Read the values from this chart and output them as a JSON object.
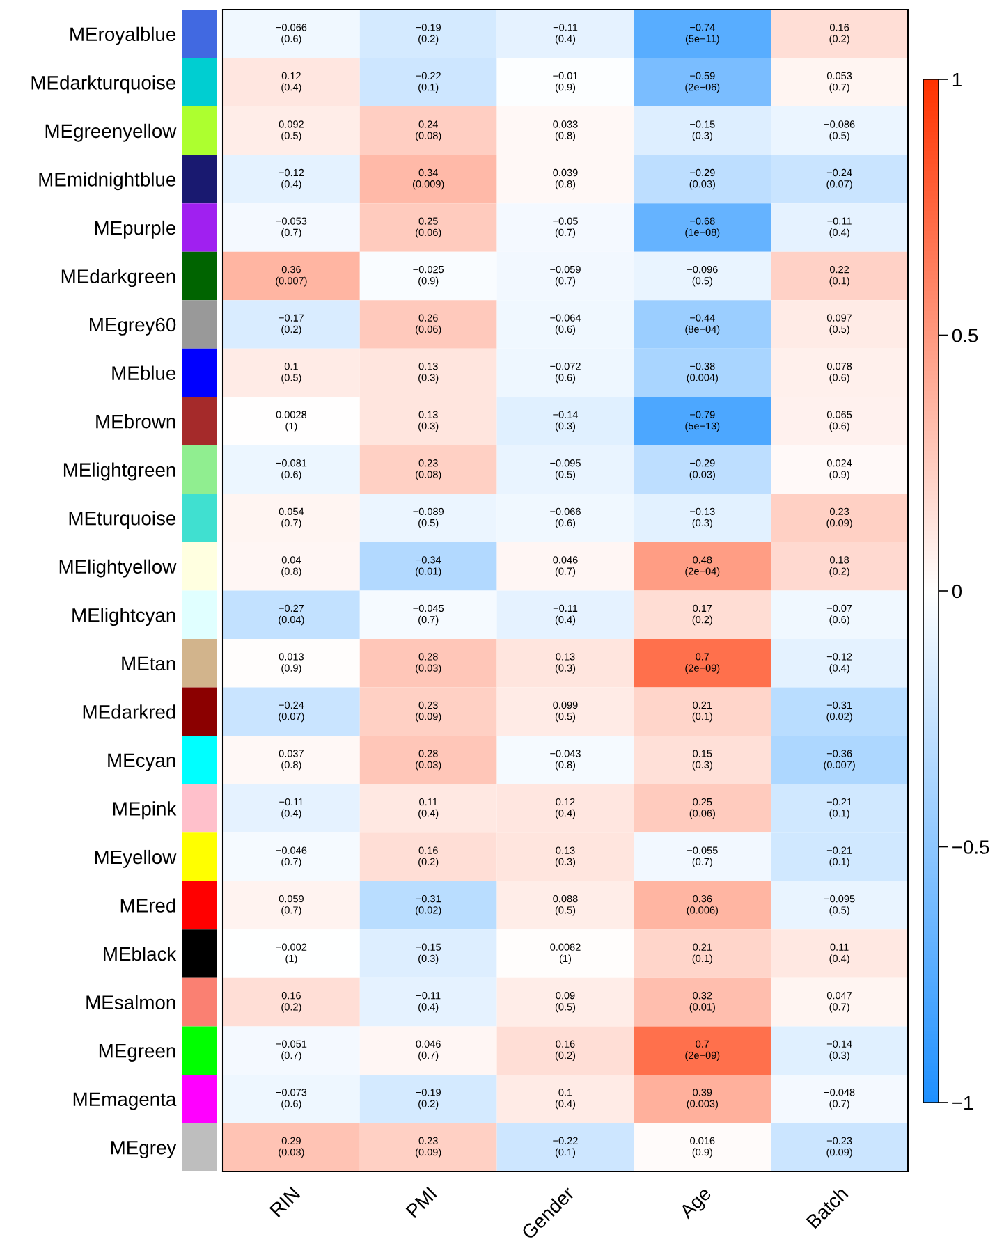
{
  "chart_data": {
    "type": "heatmap",
    "categories": [
      "RIN",
      "PMI",
      "Gender",
      "Age",
      "Batch"
    ],
    "y_categories": [
      "MEroyalblue",
      "MEdarkturquoise",
      "MEgreenyellow",
      "MEmidnightblue",
      "MEpurple",
      "MEdarkgreen",
      "MEgrey60",
      "MEblue",
      "MEbrown",
      "MElightgreen",
      "MEturquoise",
      "MElightyellow",
      "MElightcyan",
      "MEtan",
      "MEdarkred",
      "MEcyan",
      "MEpink",
      "MEyellow",
      "MEred",
      "MEblack",
      "MEsalmon",
      "MEgreen",
      "MEmagenta",
      "MEgrey"
    ],
    "colors": [
      "#4169e1",
      "#00ced1",
      "#adff2f",
      "#191970",
      "#a020f0",
      "#006400",
      "#999999",
      "#0000ff",
      "#a52a2a",
      "#90ee90",
      "#40e0d0",
      "#ffffe0",
      "#e0ffff",
      "#d2b48c",
      "#8b0000",
      "#00ffff",
      "#ffc0cb",
      "#ffff00",
      "#ff0000",
      "#000000",
      "#fa8072",
      "#00ff00",
      "#ff00ff",
      "#bebebe"
    ],
    "cells": [
      [
        -0.066,
        -0.19,
        -0.11,
        -0.74,
        0.16
      ],
      [
        0.12,
        -0.22,
        -0.01,
        -0.59,
        0.053
      ],
      [
        0.092,
        0.24,
        0.033,
        -0.15,
        -0.086
      ],
      [
        -0.12,
        0.34,
        0.039,
        -0.29,
        -0.24
      ],
      [
        -0.053,
        0.25,
        -0.05,
        -0.68,
        -0.11
      ],
      [
        0.36,
        -0.025,
        -0.059,
        -0.096,
        0.22
      ],
      [
        -0.17,
        0.26,
        -0.064,
        -0.44,
        0.097
      ],
      [
        0.1,
        0.13,
        -0.072,
        -0.38,
        0.078
      ],
      [
        0.0028,
        0.13,
        -0.14,
        -0.79,
        0.065
      ],
      [
        -0.081,
        0.23,
        -0.095,
        -0.29,
        0.024
      ],
      [
        0.054,
        -0.089,
        -0.066,
        -0.13,
        0.23
      ],
      [
        0.04,
        -0.34,
        0.046,
        0.48,
        0.18
      ],
      [
        -0.27,
        -0.045,
        -0.11,
        0.17,
        -0.07
      ],
      [
        0.013,
        0.28,
        0.13,
        0.7,
        -0.12
      ],
      [
        -0.24,
        0.23,
        0.099,
        0.21,
        -0.31
      ],
      [
        0.037,
        0.28,
        -0.043,
        0.15,
        -0.36
      ],
      [
        -0.11,
        0.11,
        0.12,
        0.25,
        -0.21
      ],
      [
        -0.046,
        0.16,
        0.13,
        -0.055,
        -0.21
      ],
      [
        0.059,
        -0.31,
        0.088,
        0.36,
        -0.095
      ],
      [
        -0.002,
        -0.15,
        0.0082,
        0.21,
        0.11
      ],
      [
        0.16,
        -0.11,
        0.09,
        0.32,
        0.047
      ],
      [
        -0.051,
        0.046,
        0.16,
        0.7,
        -0.14
      ],
      [
        -0.073,
        -0.19,
        0.1,
        0.39,
        -0.048
      ],
      [
        0.29,
        0.23,
        -0.22,
        0.016,
        -0.23
      ]
    ],
    "cell_labels": [
      [
        "−0.066\n(0.6)",
        "−0.19\n(0.2)",
        "−0.11\n(0.4)",
        "−0.74\n(5e−11)",
        "0.16\n(0.2)"
      ],
      [
        "0.12\n(0.4)",
        "−0.22\n(0.1)",
        "−0.01\n(0.9)",
        "−0.59\n(2e−06)",
        "0.053\n(0.7)"
      ],
      [
        "0.092\n(0.5)",
        "0.24\n(0.08)",
        "0.033\n(0.8)",
        "−0.15\n(0.3)",
        "−0.086\n(0.5)"
      ],
      [
        "−0.12\n(0.4)",
        "0.34\n(0.009)",
        "0.039\n(0.8)",
        "−0.29\n(0.03)",
        "−0.24\n(0.07)"
      ],
      [
        "−0.053\n(0.7)",
        "0.25\n(0.06)",
        "−0.05\n(0.7)",
        "−0.68\n(1e−08)",
        "−0.11\n(0.4)"
      ],
      [
        "0.36\n(0.007)",
        "−0.025\n(0.9)",
        "−0.059\n(0.7)",
        "−0.096\n(0.5)",
        "0.22\n(0.1)"
      ],
      [
        "−0.17\n(0.2)",
        "0.26\n(0.06)",
        "−0.064\n(0.6)",
        "−0.44\n(8e−04)",
        "0.097\n(0.5)"
      ],
      [
        "0.1\n(0.5)",
        "0.13\n(0.3)",
        "−0.072\n(0.6)",
        "−0.38\n(0.004)",
        "0.078\n(0.6)"
      ],
      [
        "0.0028\n(1)",
        "0.13\n(0.3)",
        "−0.14\n(0.3)",
        "−0.79\n(5e−13)",
        "0.065\n(0.6)"
      ],
      [
        "−0.081\n(0.6)",
        "0.23\n(0.08)",
        "−0.095\n(0.5)",
        "−0.29\n(0.03)",
        "0.024\n(0.9)"
      ],
      [
        "0.054\n(0.7)",
        "−0.089\n(0.5)",
        "−0.066\n(0.6)",
        "−0.13\n(0.3)",
        "0.23\n(0.09)"
      ],
      [
        "0.04\n(0.8)",
        "−0.34\n(0.01)",
        "0.046\n(0.7)",
        "0.48\n(2e−04)",
        "0.18\n(0.2)"
      ],
      [
        "−0.27\n(0.04)",
        "−0.045\n(0.7)",
        "−0.11\n(0.4)",
        "0.17\n(0.2)",
        "−0.07\n(0.6)"
      ],
      [
        "0.013\n(0.9)",
        "0.28\n(0.03)",
        "0.13\n(0.3)",
        "0.7\n(2e−09)",
        "−0.12\n(0.4)"
      ],
      [
        "−0.24\n(0.07)",
        "0.23\n(0.09)",
        "0.099\n(0.5)",
        "0.21\n(0.1)",
        "−0.31\n(0.02)"
      ],
      [
        "0.037\n(0.8)",
        "0.28\n(0.03)",
        "−0.043\n(0.8)",
        "0.15\n(0.3)",
        "−0.36\n(0.007)"
      ],
      [
        "−0.11\n(0.4)",
        "0.11\n(0.4)",
        "0.12\n(0.4)",
        "0.25\n(0.06)",
        "−0.21\n(0.1)"
      ],
      [
        "−0.046\n(0.7)",
        "0.16\n(0.2)",
        "0.13\n(0.3)",
        "−0.055\n(0.7)",
        "−0.21\n(0.1)"
      ],
      [
        "0.059\n(0.7)",
        "−0.31\n(0.02)",
        "0.088\n(0.5)",
        "0.36\n(0.006)",
        "−0.095\n(0.5)"
      ],
      [
        "−0.002\n(1)",
        "−0.15\n(0.3)",
        "0.0082\n(1)",
        "0.21\n(0.1)",
        "0.11\n(0.4)"
      ],
      [
        "0.16\n(0.2)",
        "−0.11\n(0.4)",
        "0.09\n(0.5)",
        "0.32\n(0.01)",
        "0.047\n(0.7)"
      ],
      [
        "−0.051\n(0.7)",
        "0.046\n(0.7)",
        "0.16\n(0.2)",
        "0.7\n(2e−09)",
        "−0.14\n(0.3)"
      ],
      [
        "−0.073\n(0.6)",
        "−0.19\n(0.2)",
        "0.1\n(0.4)",
        "0.39\n(0.003)",
        "−0.048\n(0.7)"
      ],
      [
        "0.29\n(0.03)",
        "0.23\n(0.09)",
        "−0.22\n(0.1)",
        "0.016\n(0.9)",
        "−0.23\n(0.09)"
      ]
    ],
    "clim": [
      -1,
      1
    ],
    "cticks": [
      {
        "value": -1,
        "label": "−1"
      },
      {
        "value": -0.5,
        "label": "−0.5"
      },
      {
        "value": 0,
        "label": "0"
      },
      {
        "value": 0.5,
        "label": "0.5"
      },
      {
        "value": 1,
        "label": "1"
      }
    ]
  }
}
